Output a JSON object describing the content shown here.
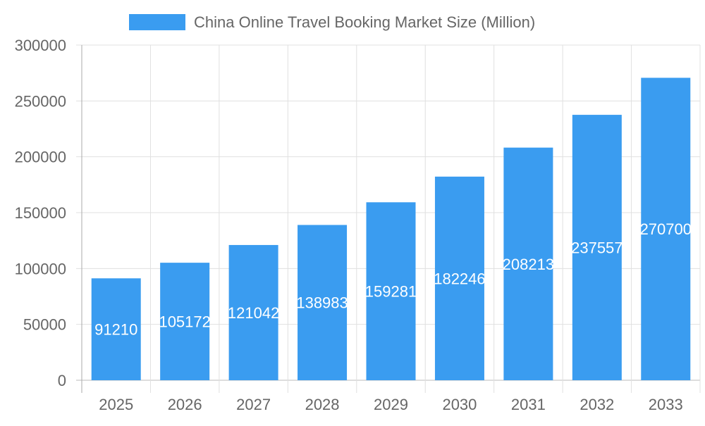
{
  "chart_data": {
    "type": "bar",
    "title": "",
    "xlabel": "",
    "ylabel": "",
    "categories": [
      "2025",
      "2026",
      "2027",
      "2028",
      "2029",
      "2030",
      "2031",
      "2032",
      "2033"
    ],
    "series": [
      {
        "name": "China Online Travel Booking Market Size (Million)",
        "values": [
          91210,
          105172,
          121042,
          138983,
          159281,
          182246,
          208213,
          237557,
          270700
        ]
      }
    ],
    "ylim": [
      0,
      300000
    ],
    "yticks": [
      "0",
      "50000",
      "100000",
      "150000",
      "200000",
      "250000",
      "300000"
    ],
    "grid": true,
    "legend": "top",
    "data_labels": true,
    "colors": {
      "bar": "#3a9cf0",
      "grid": "#e0e0e0",
      "axis": "#aaaaaa",
      "text": "#666666",
      "label": "#ffffff"
    }
  }
}
